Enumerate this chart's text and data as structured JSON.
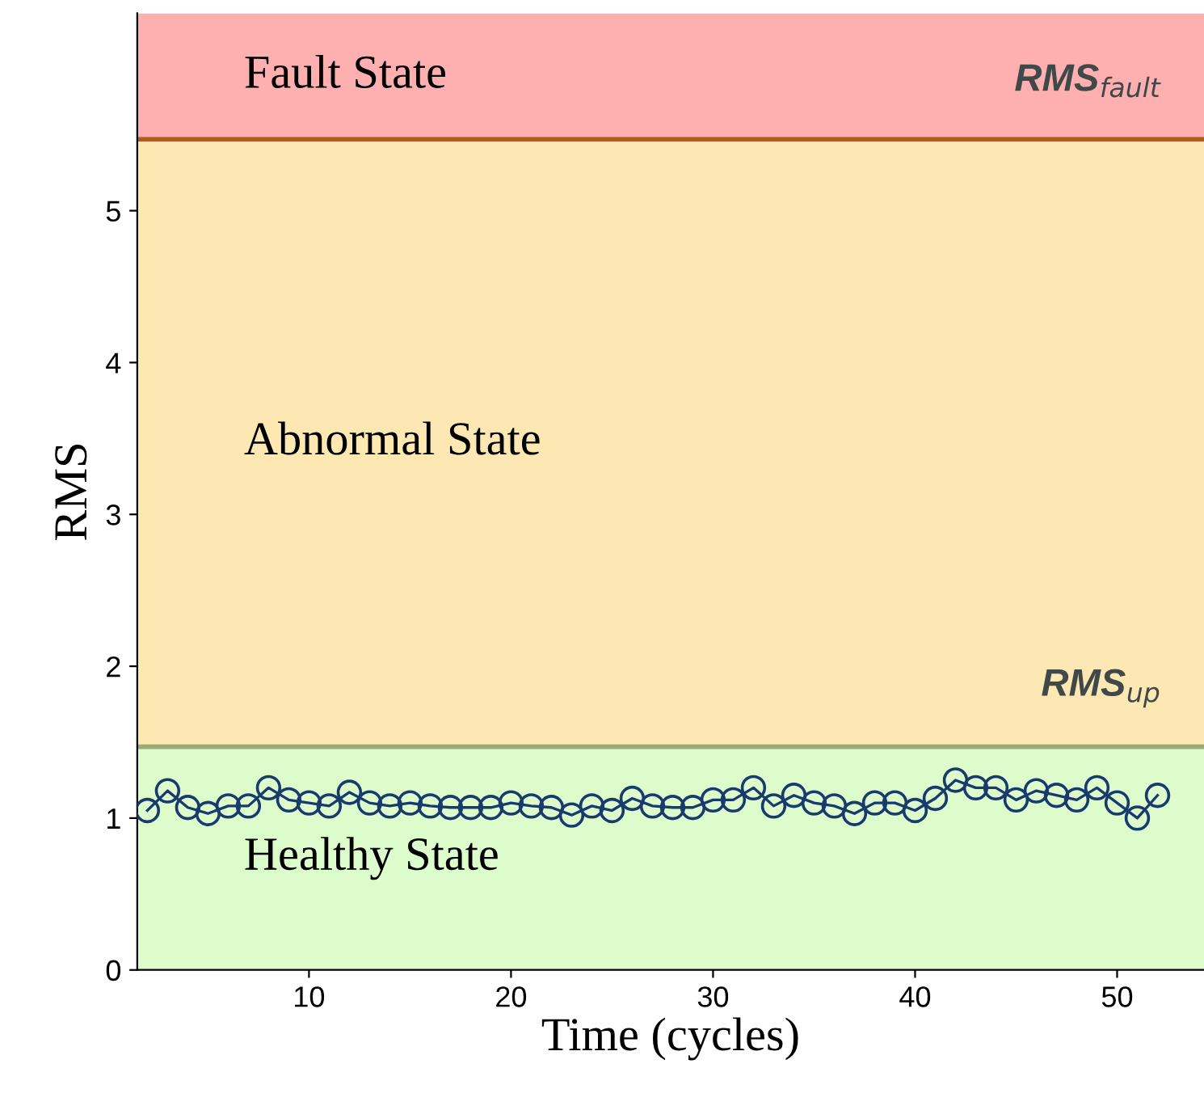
{
  "chart_data": {
    "type": "line",
    "xlabel": "Time (cycles)",
    "ylabel": "RMS",
    "x": [
      2,
      3,
      4,
      5,
      6,
      7,
      8,
      9,
      10,
      11,
      12,
      13,
      14,
      15,
      16,
      17,
      18,
      19,
      20,
      21,
      22,
      23,
      24,
      25,
      26,
      27,
      28,
      29,
      30,
      31,
      32,
      33,
      34,
      35,
      36,
      37,
      38,
      39,
      40,
      41,
      42,
      43,
      44,
      45,
      46,
      47,
      48,
      49,
      50,
      51,
      52
    ],
    "series": [
      {
        "color": "#1a3a6e",
        "values": [
          1.05,
          1.18,
          1.07,
          1.03,
          1.08,
          1.08,
          1.2,
          1.12,
          1.1,
          1.08,
          1.17,
          1.1,
          1.08,
          1.1,
          1.08,
          1.07,
          1.07,
          1.07,
          1.1,
          1.08,
          1.07,
          1.02,
          1.08,
          1.05,
          1.13,
          1.08,
          1.07,
          1.07,
          1.12,
          1.12,
          1.2,
          1.08,
          1.15,
          1.1,
          1.08,
          1.03,
          1.1,
          1.1,
          1.05,
          1.13,
          1.25,
          1.2,
          1.2,
          1.12,
          1.18,
          1.15,
          1.12,
          1.2,
          1.1,
          1.0,
          1.15
        ]
      }
    ],
    "marker": "circle",
    "line_style": "solid",
    "grid": false,
    "xlim": [
      1.5,
      54.3
    ],
    "ylim": [
      0,
      6.3
    ],
    "xticks": [
      10,
      20,
      30,
      40,
      50
    ],
    "yticks": [
      0,
      1,
      2,
      3,
      4,
      5
    ],
    "bands": [
      {
        "axis": "y",
        "from": 0,
        "to": 1.47,
        "label": "Healthy State",
        "color": "#dcfccc"
      },
      {
        "axis": "y",
        "from": 1.47,
        "to": 5.47,
        "label": "Abnormal State",
        "color": "#fde8b3"
      },
      {
        "axis": "y",
        "from": 5.47,
        "to": 6.3,
        "label": "Fault State",
        "color": "#feb0b0"
      }
    ],
    "ref_lines": [
      {
        "axis": "y",
        "value": 5.47,
        "label": "RMS$_{fault}$",
        "color": "#b0581e"
      },
      {
        "axis": "y",
        "value": 1.47,
        "label": "RMS$_{up}$",
        "color": "#9aaa78"
      }
    ]
  }
}
